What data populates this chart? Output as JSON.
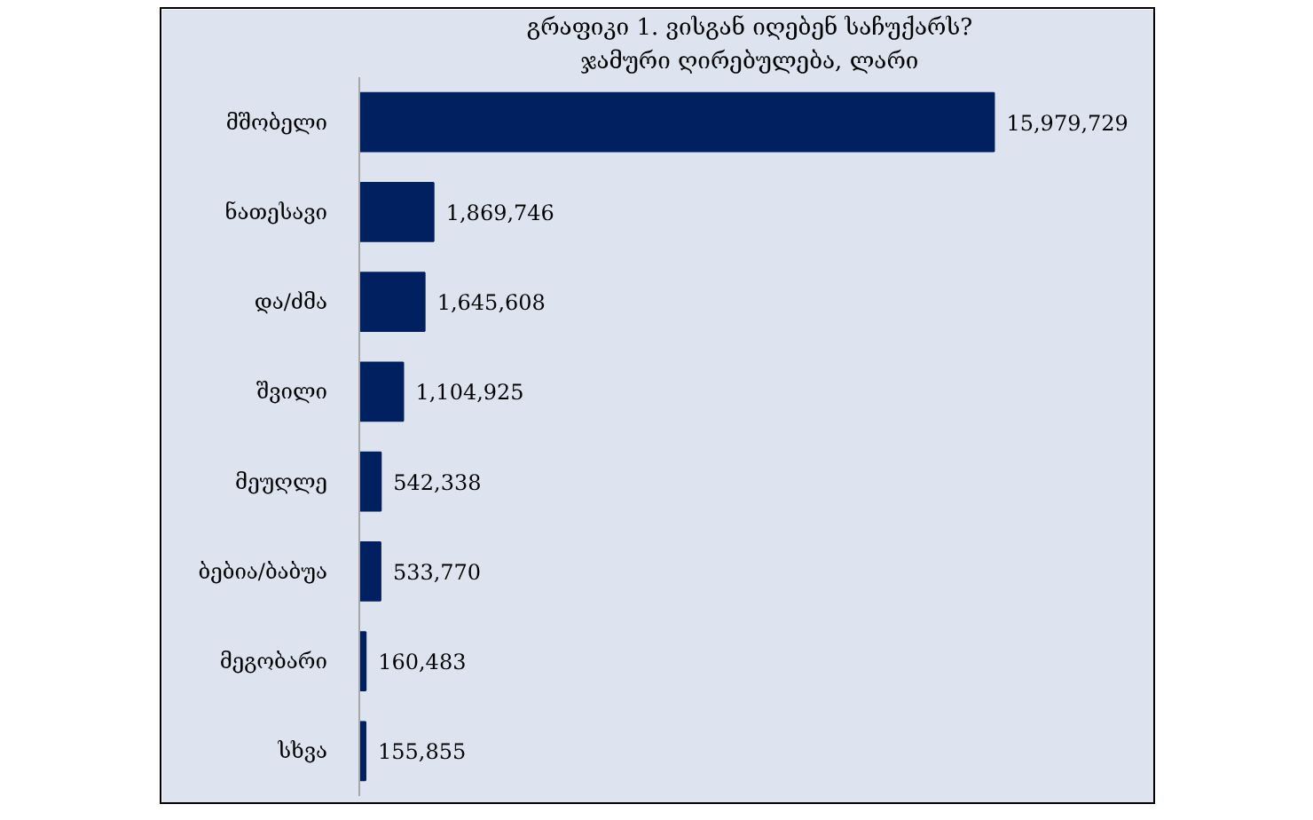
{
  "chart_data": {
    "type": "bar",
    "orientation": "horizontal",
    "title": "გრაფიკი 1. ვისგან იღებენ საჩუქარს?",
    "subtitle": "ჯამური ღირებულება, ლარი",
    "categories": [
      "მშობელი",
      "ნათესავი",
      "და/ძმა",
      "შვილი",
      "მეუღლე",
      "ბებია/ბაბუა",
      "მეგობარი",
      "სხვა"
    ],
    "values": [
      15979729,
      1869746,
      1645608,
      1104925,
      542338,
      533770,
      160483,
      155855
    ],
    "value_labels": [
      "15,979,729",
      "1,869,746",
      "1,645,608",
      "1,104,925",
      "542,338",
      "533,770",
      "160,483",
      "155,855"
    ],
    "color": "#002060",
    "grid": false
  }
}
